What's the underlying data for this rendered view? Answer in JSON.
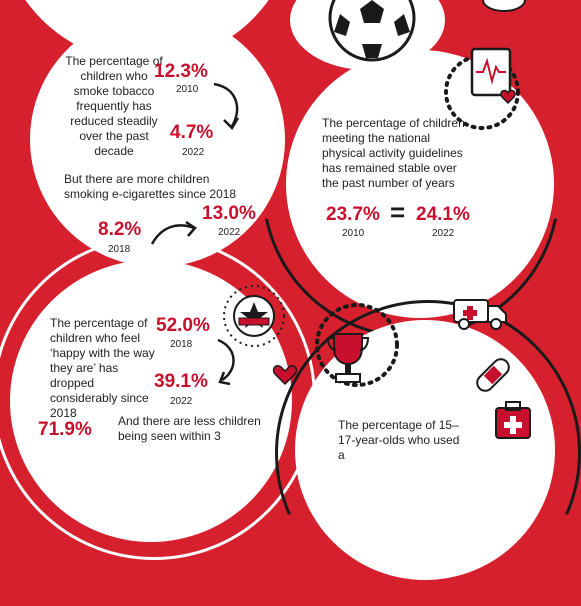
{
  "colors": {
    "background_red": "#d6202e",
    "stat_red": "#c8102e",
    "text_dark": "#222222",
    "white": "#ffffff"
  },
  "icons": [
    "soccer-ball-icon",
    "heart-monitor-icon",
    "star-badge-icon",
    "trophy-icon",
    "heart-icon",
    "ambulance-icon",
    "bandage-icon",
    "first-aid-kit-icon"
  ],
  "smoking": {
    "intro": "The percentage of children who smoke tobacco frequently has reduced steadily over the past decade",
    "stat_old": "12.3%",
    "year_old": "2010",
    "stat_new": "4.7%",
    "year_new": "2022",
    "ecig_text": "But there are more children smoking e-cigarettes since 2018",
    "ecig_old": "8.2%",
    "ecig_year_old": "2018",
    "ecig_new": "13.0%",
    "ecig_year_new": "2022"
  },
  "activity": {
    "text": "The percentage of children meeting the national physical activity guidelines has remained stable over the past number of years",
    "stat_old": "23.7%",
    "year_old": "2010",
    "equals": "=",
    "stat_new": "24.1%",
    "year_new": "2022"
  },
  "happiness": {
    "text": "The percentage of children who feel ‘happy with the way they are’ has dropped considerably since 2018",
    "stat_old": "52.0%",
    "year_old": "2018",
    "stat_new": "39.1%",
    "year_new": "2022"
  },
  "gp": {
    "stat": "71.9%",
    "text": "And there are less children being seen within 3"
  },
  "youth": {
    "text": "The percentage of 15–17-year-olds who used a"
  }
}
